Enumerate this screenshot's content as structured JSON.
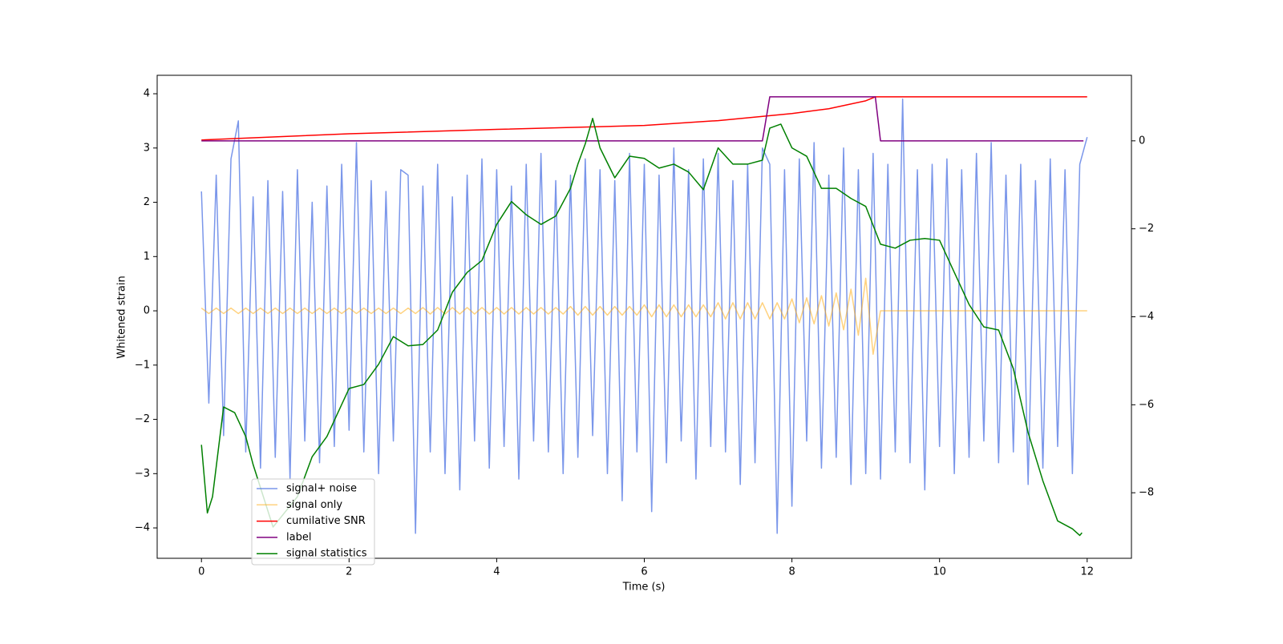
{
  "chart_data": {
    "type": "line",
    "xlabel": "Time (s)",
    "ylabel": "Whitened strain",
    "xlim": [
      -0.6,
      12.6
    ],
    "xticks": [
      0,
      2,
      4,
      6,
      8,
      10,
      12
    ],
    "ylim": [
      -4.56,
      4.34
    ],
    "yticks": [
      {
        "value": -4,
        "label": "−4"
      },
      {
        "value": -3,
        "label": "−3"
      },
      {
        "value": -2,
        "label": "−2"
      },
      {
        "value": -1,
        "label": "−1"
      },
      0,
      1,
      2,
      3,
      4
    ],
    "y2lim": [
      -9.49,
      1.49
    ],
    "y2ticks": [
      {
        "value": -8,
        "label": "−8"
      },
      {
        "value": -6,
        "label": "−6"
      },
      {
        "value": -4,
        "label": "−4"
      },
      {
        "value": -2,
        "label": "−2"
      },
      0
    ],
    "legend": "lower left",
    "x": [
      0,
      0.1,
      0.2,
      0.3,
      0.4,
      0.5,
      0.6,
      0.7,
      0.8,
      0.9,
      1,
      1.1,
      1.2,
      1.3,
      1.4,
      1.5,
      1.6,
      1.7,
      1.8,
      1.9,
      2,
      2.1,
      2.2,
      2.3,
      2.4,
      2.5,
      2.6,
      2.7,
      2.8,
      2.9,
      3,
      3.1,
      3.2,
      3.3,
      3.4,
      3.5,
      3.6,
      3.7,
      3.8,
      3.9,
      4,
      4.1,
      4.2,
      4.3,
      4.4,
      4.5,
      4.6,
      4.7,
      4.8,
      4.9,
      5,
      5.1,
      5.2,
      5.3,
      5.4,
      5.5,
      5.6,
      5.7,
      5.8,
      5.9,
      6,
      6.1,
      6.2,
      6.3,
      6.4,
      6.5,
      6.6,
      6.7,
      6.8,
      6.9,
      7,
      7.1,
      7.2,
      7.3,
      7.4,
      7.5,
      7.6,
      7.7,
      7.8,
      7.9,
      8,
      8.1,
      8.2,
      8.3,
      8.4,
      8.5,
      8.6,
      8.7,
      8.8,
      8.9,
      9,
      9.1,
      9.2,
      9.3,
      9.4,
      9.5,
      9.6,
      9.7,
      9.8,
      9.9,
      10,
      10.1,
      10.2,
      10.3,
      10.4,
      10.5,
      10.6,
      10.7,
      10.8,
      10.9,
      11,
      11.1,
      11.2,
      11.3,
      11.4,
      11.5,
      11.6,
      11.7,
      11.8,
      11.9,
      12
    ],
    "series": [
      {
        "name": "signal+ noise",
        "color": "#4169e1",
        "values": [
          2.2,
          -1.7,
          2.5,
          -2.3,
          2.8,
          3.5,
          -2.6,
          2.1,
          -2.9,
          2.4,
          -2.7,
          2.2,
          -3.1,
          2.6,
          -2.4,
          2.0,
          -2.8,
          2.3,
          -2.5,
          2.7,
          -2.2,
          3.1,
          -2.6,
          2.4,
          -3.0,
          2.2,
          -2.4,
          2.6,
          2.5,
          -4.1,
          2.3,
          -2.6,
          2.7,
          -3.0,
          2.1,
          -3.3,
          2.5,
          -2.4,
          2.8,
          -2.9,
          2.6,
          -2.5,
          2.3,
          -3.1,
          2.7,
          -2.4,
          2.9,
          -2.6,
          2.4,
          -3.0,
          2.5,
          -2.7,
          2.8,
          -2.3,
          2.6,
          -3.0,
          2.4,
          -3.5,
          2.9,
          -2.6,
          2.7,
          -3.7,
          2.5,
          -2.8,
          3.0,
          -2.4,
          2.6,
          -3.1,
          2.8,
          -2.5,
          2.9,
          -2.6,
          2.4,
          -3.2,
          2.7,
          -2.8,
          3.0,
          2.7,
          -4.1,
          2.6,
          -3.6,
          2.8,
          -2.4,
          3.1,
          -2.9,
          2.5,
          -2.7,
          3.0,
          -3.2,
          2.6,
          -3.0,
          2.9,
          -3.1,
          2.7,
          -2.6,
          3.9,
          -2.8,
          2.6,
          -3.3,
          2.7,
          -2.5,
          2.8,
          -3.0,
          2.6,
          -2.7,
          2.9,
          -2.4,
          3.1,
          -2.8,
          2.5,
          -2.6,
          2.7,
          -3.2,
          2.4,
          -2.9,
          2.8,
          -2.5,
          2.6,
          -3.0,
          2.7,
          3.2
        ]
      },
      {
        "name": "signal only",
        "color": "#ffa500",
        "values": [
          0.05,
          -0.05,
          0.05,
          -0.05,
          0.05,
          -0.05,
          0.05,
          -0.05,
          0.05,
          -0.05,
          0.05,
          -0.05,
          0.05,
          -0.05,
          0.05,
          -0.05,
          0.05,
          -0.05,
          0.05,
          -0.05,
          0.05,
          -0.05,
          0.05,
          -0.05,
          0.05,
          -0.05,
          0.05,
          -0.05,
          0.05,
          -0.05,
          0.06,
          -0.06,
          0.06,
          -0.06,
          0.06,
          -0.06,
          0.06,
          -0.06,
          0.06,
          -0.06,
          0.06,
          -0.06,
          0.06,
          -0.06,
          0.06,
          -0.06,
          0.06,
          -0.06,
          0.06,
          -0.06,
          0.08,
          -0.08,
          0.08,
          -0.08,
          0.08,
          -0.08,
          0.08,
          -0.08,
          0.08,
          -0.08,
          0.11,
          -0.11,
          0.11,
          -0.11,
          0.11,
          -0.11,
          0.11,
          -0.11,
          0.11,
          -0.11,
          0.15,
          -0.15,
          0.15,
          -0.15,
          0.15,
          -0.15,
          0.15,
          -0.15,
          0.15,
          -0.15,
          0.22,
          -0.22,
          0.24,
          -0.24,
          0.28,
          -0.28,
          0.33,
          -0.35,
          0.4,
          -0.45,
          0.6,
          -0.8,
          0,
          0,
          0,
          0,
          0,
          0,
          0,
          0,
          0,
          0,
          0,
          0,
          0,
          0,
          0,
          0,
          0,
          0,
          0,
          0,
          0,
          0,
          0,
          0,
          0,
          0,
          0,
          0,
          0
        ]
      },
      {
        "name": "cumilative SNR",
        "color": "#ff0000",
        "axis": "y2",
        "x": [
          0,
          2,
          4,
          6,
          7,
          8,
          8.5,
          9,
          9.13,
          12
        ],
        "values": [
          0.02,
          0.16,
          0.26,
          0.35,
          0.46,
          0.62,
          0.73,
          0.91,
          1.0,
          1.0
        ]
      },
      {
        "name": "label",
        "color": "#800080",
        "axis": "y2",
        "x": [
          0,
          7.6,
          7.7,
          9.13,
          9.2,
          11.95
        ],
        "values": [
          0,
          0,
          1,
          1,
          0,
          0
        ]
      },
      {
        "name": "signal statistics",
        "color": "#008000",
        "axis": "y2",
        "x": [
          0,
          0.08,
          0.15,
          0.3,
          0.45,
          0.6,
          0.7,
          0.97,
          1.3,
          1.5,
          1.7,
          2.0,
          2.2,
          2.4,
          2.6,
          2.8,
          3.0,
          3.2,
          3.4,
          3.6,
          3.8,
          4.0,
          4.2,
          4.4,
          4.6,
          4.8,
          5.0,
          5.1,
          5.2,
          5.3,
          5.4,
          5.6,
          5.8,
          6.0,
          6.2,
          6.4,
          6.6,
          6.8,
          7.0,
          7.2,
          7.4,
          7.6,
          7.7,
          7.85,
          8.0,
          8.2,
          8.4,
          8.6,
          8.8,
          9.0,
          9.2,
          9.4,
          9.6,
          9.8,
          10.0,
          10.2,
          10.4,
          10.6,
          10.8,
          11.0,
          11.2,
          11.4,
          11.6,
          11.8,
          11.9,
          11.93
        ],
        "values": [
          -6.91,
          -8.46,
          -8.09,
          -6.05,
          -6.18,
          -6.72,
          -7.36,
          -8.78,
          -8.09,
          -7.18,
          -6.72,
          -5.63,
          -5.54,
          -5.08,
          -4.45,
          -4.66,
          -4.63,
          -4.3,
          -3.44,
          -2.99,
          -2.72,
          -1.9,
          -1.38,
          -1.68,
          -1.9,
          -1.71,
          -1.08,
          -0.53,
          -0.07,
          0.51,
          -0.16,
          -0.84,
          -0.35,
          -0.4,
          -0.62,
          -0.53,
          -0.71,
          -1.11,
          -0.16,
          -0.53,
          -0.53,
          -0.44,
          0.29,
          0.38,
          -0.16,
          -0.35,
          -1.08,
          -1.08,
          -1.31,
          -1.49,
          -2.35,
          -2.44,
          -2.26,
          -2.22,
          -2.26,
          -2.99,
          -3.72,
          -4.23,
          -4.3,
          -5.18,
          -6.63,
          -7.73,
          -8.64,
          -8.82,
          -8.97,
          -8.91
        ]
      }
    ]
  }
}
